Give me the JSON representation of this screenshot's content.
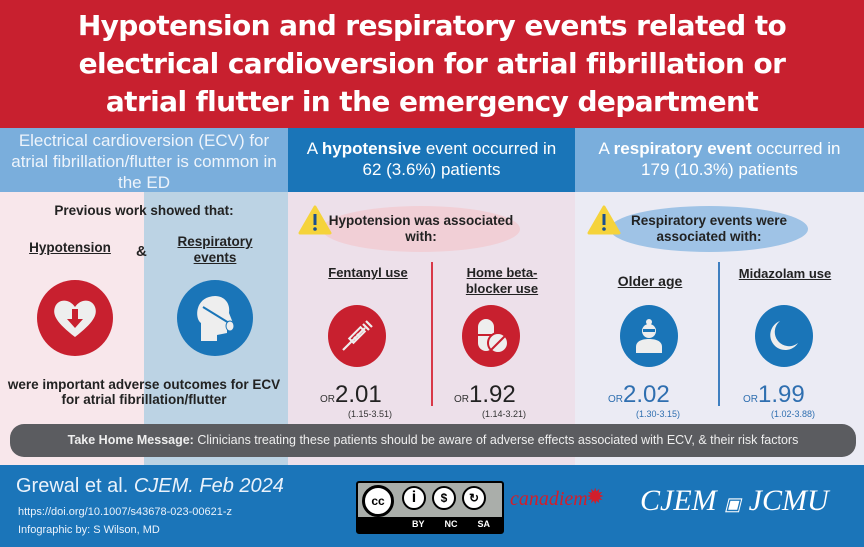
{
  "title": {
    "lines": [
      "Hypotension and respiratory events related to",
      "electrical cardioversion for atrial fibrillation or",
      "atrial flutter in the emergency department"
    ]
  },
  "col1": {
    "header": "Electrical cardioversion (ECV) for atrial fibrillation/flutter is common in the ED",
    "intro": "Previous work showed that:",
    "item1": "Hypotension",
    "amp": "&",
    "item2": "Respiratory events",
    "outro": "were important adverse outcomes for ECV for atrial fibrillation/flutter"
  },
  "col2": {
    "header_pre": "A ",
    "header_bold": "hypotensive",
    "header_post": " event occurred in",
    "header_line2": "62 (3.6%) patients",
    "pill": "Hypotension was associated with:",
    "factors": [
      {
        "label": "Fentanyl use",
        "or_label": "OR",
        "or": "2.01",
        "ci": "(1.15-3.51)",
        "icon": "syringe-icon"
      },
      {
        "label": "Home beta-blocker use",
        "or_label": "OR",
        "or": "1.92",
        "ci": "(1.14-3.21)",
        "icon": "pills-icon"
      }
    ]
  },
  "col3": {
    "header_pre": "A ",
    "header_bold": "respiratory event",
    "header_post": " occurred in",
    "header_line2": "179 (10.3%) patients",
    "pill": "Respiratory events were associated with:",
    "factors": [
      {
        "label": "Older age",
        "or_label": "OR",
        "or": "2.02",
        "ci": "(1.30-3.15)",
        "icon": "elderly-person-icon"
      },
      {
        "label": "Midazolam use",
        "or_label": "OR",
        "or": "1.99",
        "ci": "(1.02-3.88)",
        "icon": "moon-icon"
      }
    ]
  },
  "takehome": {
    "label": "Take Home Message:",
    "text": " Clinicians treating these patients should be aware of adverse effects associated with ECV, & their risk factors"
  },
  "footer": {
    "citation_authors": "Grewal et al. ",
    "citation_journal": "CJEM. Feb 2024",
    "doi": "https://doi.org/10.1007/s43678-023-00621-z",
    "credit": "Infographic by: S Wilson, MD",
    "cc_labels": [
      "BY",
      "NC",
      "SA"
    ],
    "canadiem": "canadiem",
    "cjem": "CJEM",
    "jcmu": "JCMU"
  },
  "colors": {
    "red": "#c8202f",
    "blue": "#1b75b9",
    "light_blue": "#7aaedc",
    "gray": "#5b5c60",
    "warning": "#f5d33b"
  }
}
